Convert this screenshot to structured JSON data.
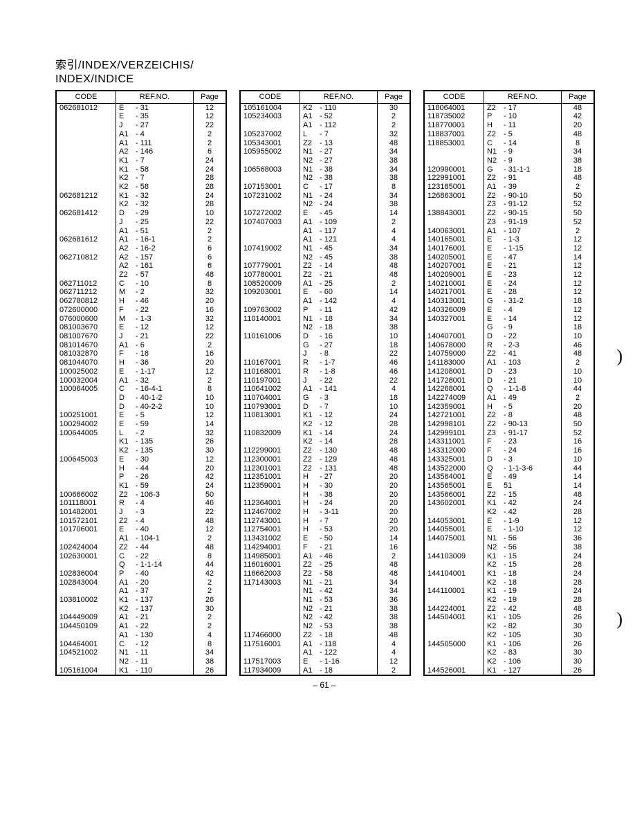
{
  "title_line1": "索引/INDEX/VERZEICHIS/",
  "title_line2": "INDEX/INDICE",
  "page_footer": "– 61 –",
  "paren_char": ")",
  "headers": {
    "c1": "CODE",
    "c2": "REF.NO.",
    "c3": "Page"
  },
  "borderColor": "#000000",
  "bgColor": "#ffffff",
  "textColor": "#000000",
  "tables": [
    {
      "rows": [
        [
          "062681012",
          "E",
          "- 31",
          "12"
        ],
        [
          "",
          "E",
          "- 35",
          "12"
        ],
        [
          "",
          "J",
          "- 27",
          "22"
        ],
        [
          "",
          "A1",
          "- 4",
          "2"
        ],
        [
          "",
          "A1",
          "- 111",
          "2"
        ],
        [
          "",
          "A2",
          "- 146",
          "6"
        ],
        [
          "",
          "K1",
          "- 7",
          "24"
        ],
        [
          "",
          "K1",
          "- 58",
          "24"
        ],
        [
          "",
          "K2",
          "- 7",
          "28"
        ],
        [
          "",
          "K2",
          "- 58",
          "28"
        ],
        [
          "062681212",
          "K1",
          "- 32",
          "24"
        ],
        [
          "",
          "K2",
          "- 32",
          "28"
        ],
        [
          "062681412",
          "D",
          "- 29",
          "10"
        ],
        [
          "",
          "J",
          "- 25",
          "22"
        ],
        [
          "",
          "A1",
          "- 51",
          "2"
        ],
        [
          "062681612",
          "A1",
          "- 16-1",
          "2"
        ],
        [
          "",
          "A2",
          "- 16-2",
          "6"
        ],
        [
          "062710812",
          "A2",
          "- 157",
          "6"
        ],
        [
          "",
          "A2",
          "- 161",
          "6"
        ],
        [
          "",
          "Z2",
          "- 57",
          "48"
        ],
        [
          "062711012",
          "C",
          "- 10",
          "8"
        ],
        [
          "062711212",
          "M",
          "- 2",
          "32"
        ],
        [
          "062780812",
          "H",
          "- 46",
          "20"
        ],
        [
          "072600000",
          "F",
          "- 22",
          "16"
        ],
        [
          "076000600",
          "M",
          "- 1-3",
          "32"
        ],
        [
          "081003670",
          "E",
          "- 12",
          "12"
        ],
        [
          "081007670",
          "J",
          "- 21",
          "22"
        ],
        [
          "081014670",
          "A1",
          "- 6",
          "2"
        ],
        [
          "081032870",
          "F",
          "- 18",
          "16"
        ],
        [
          "081044070",
          "H",
          "- 36",
          "20"
        ],
        [
          "100025002",
          "E",
          "- 1-17",
          "12"
        ],
        [
          "100032004",
          "A1",
          "- 32",
          "2"
        ],
        [
          "100064005",
          "C",
          "- 16-4-1",
          "8"
        ],
        [
          "",
          "D",
          "- 40-1-2",
          "10"
        ],
        [
          "",
          "D",
          "- 40-2-2",
          "10"
        ],
        [
          "100251001",
          "E",
          "- 5",
          "12"
        ],
        [
          "100294002",
          "E",
          "- 59",
          "14"
        ],
        [
          "100644005",
          "L",
          "- 2",
          "32"
        ],
        [
          "",
          "K1",
          "- 135",
          "26"
        ],
        [
          "",
          "K2",
          "- 135",
          "30"
        ],
        [
          "100645003",
          "E",
          "- 30",
          "12"
        ],
        [
          "",
          "H",
          "- 44",
          "20"
        ],
        [
          "",
          "P",
          "- 26",
          "42"
        ],
        [
          "",
          "K1",
          "- 59",
          "24"
        ],
        [
          "100666002",
          "Z2",
          "- 106-3",
          "50"
        ],
        [
          "101118001",
          "R",
          "- 4",
          "46"
        ],
        [
          "101482001",
          "J",
          "- 3",
          "22"
        ],
        [
          "101572101",
          "Z2",
          "- 4",
          "48"
        ],
        [
          "101706001",
          "E",
          "- 40",
          "12"
        ],
        [
          "",
          "A1",
          "- 104-1",
          "2"
        ],
        [
          "102424004",
          "Z2",
          "- 44",
          "48"
        ],
        [
          "102630001",
          "C",
          "- 22",
          "8"
        ],
        [
          "",
          "Q",
          "- 1-1-14",
          "44"
        ],
        [
          "102836004",
          "P",
          "- 40",
          "42"
        ],
        [
          "102843004",
          "A1",
          "- 20",
          "2"
        ],
        [
          "",
          "A1",
          "- 37",
          "2"
        ],
        [
          "103810002",
          "K1",
          "- 137",
          "26"
        ],
        [
          "",
          "K2",
          "- 137",
          "30"
        ],
        [
          "104449009",
          "A1",
          "- 21",
          "2"
        ],
        [
          "104450109",
          "A1",
          "- 22",
          "2"
        ],
        [
          "",
          "A1",
          "- 130",
          "4"
        ],
        [
          "104464001",
          "C",
          "- 12",
          "8"
        ],
        [
          "104521002",
          "N1",
          "- 11",
          "34"
        ],
        [
          "",
          "N2",
          "- 11",
          "38"
        ],
        [
          "105161004",
          "K1",
          "- 110",
          "26"
        ]
      ]
    },
    {
      "rows": [
        [
          "105161004",
          "K2",
          "- 110",
          "30"
        ],
        [
          "105234003",
          "A1",
          "- 52",
          "2"
        ],
        [
          "",
          "A1",
          "- 112",
          "2"
        ],
        [
          "105237002",
          "L",
          "- 7",
          "32"
        ],
        [
          "105343001",
          "Z2",
          "- 13",
          "48"
        ],
        [
          "105955002",
          "N1",
          "- 27",
          "34"
        ],
        [
          "",
          "N2",
          "- 27",
          "38"
        ],
        [
          "106568003",
          "N1",
          "- 38",
          "34"
        ],
        [
          "",
          "N2",
          "- 38",
          "38"
        ],
        [
          "107153001",
          "C",
          "- 17",
          "8"
        ],
        [
          "107231002",
          "N1",
          "- 24",
          "34"
        ],
        [
          "",
          "N2",
          "- 24",
          "38"
        ],
        [
          "107272002",
          "E",
          "- 45",
          "14"
        ],
        [
          "107407003",
          "A1",
          "- 109",
          "2"
        ],
        [
          "",
          "A1",
          "- 117",
          "4"
        ],
        [
          "",
          "A1",
          "- 121",
          "4"
        ],
        [
          "107419002",
          "N1",
          "- 45",
          "34"
        ],
        [
          "",
          "N2",
          "- 45",
          "38"
        ],
        [
          "107779001",
          "Z2",
          "- 14",
          "48"
        ],
        [
          "107780001",
          "Z2",
          "- 21",
          "48"
        ],
        [
          "108520009",
          "A1",
          "- 25",
          "2"
        ],
        [
          "109203001",
          "E",
          "- 60",
          "14"
        ],
        [
          "",
          "A1",
          "- 142",
          "4"
        ],
        [
          "109763002",
          "P",
          "- 11",
          "42"
        ],
        [
          "110140001",
          "N1",
          "- 18",
          "34"
        ],
        [
          "",
          "N2",
          "- 18",
          "38"
        ],
        [
          "110161006",
          "D",
          "- 16",
          "10"
        ],
        [
          "",
          "G",
          "- 27",
          "18"
        ],
        [
          "",
          "J",
          "- 8",
          "22"
        ],
        [
          "110167001",
          "R",
          "- 1-7",
          "46"
        ],
        [
          "110168001",
          "R",
          "- 1-8",
          "46"
        ],
        [
          "110197001",
          "J",
          "- 22",
          "22"
        ],
        [
          "110641002",
          "A1",
          "- 141",
          "4"
        ],
        [
          "110704001",
          "G",
          "- 3",
          "18"
        ],
        [
          "110793001",
          "D",
          "- 7",
          "10"
        ],
        [
          "110813001",
          "K1",
          "- 12",
          "24"
        ],
        [
          "",
          "K2",
          "- 12",
          "28"
        ],
        [
          "110832009",
          "K1",
          "- 14",
          "24"
        ],
        [
          "",
          "K2",
          "- 14",
          "28"
        ],
        [
          "112299001",
          "Z2",
          "- 130",
          "48"
        ],
        [
          "112300001",
          "Z2",
          "- 129",
          "48"
        ],
        [
          "112301001",
          "Z2",
          "- 131",
          "48"
        ],
        [
          "112351001",
          "H",
          "- 27",
          "20"
        ],
        [
          "112359001",
          "H",
          "- 30",
          "20"
        ],
        [
          "",
          "H",
          "- 38",
          "20"
        ],
        [
          "112364001",
          "H",
          "- 24",
          "20"
        ],
        [
          "112467002",
          "H",
          "- 3-11",
          "20"
        ],
        [
          "112743001",
          "H",
          "- 7",
          "20"
        ],
        [
          "112754001",
          "H",
          "- 53",
          "20"
        ],
        [
          "113431002",
          "E",
          "- 50",
          "14"
        ],
        [
          "114294001",
          "F",
          "- 21",
          "16"
        ],
        [
          "114985001",
          "A1",
          "- 46",
          "2"
        ],
        [
          "116016001",
          "Z2",
          "- 25",
          "48"
        ],
        [
          "116662003",
          "Z2",
          "- 58",
          "48"
        ],
        [
          "117143003",
          "N1",
          "- 21",
          "34"
        ],
        [
          "",
          "N1",
          "- 42",
          "34"
        ],
        [
          "",
          "N1",
          "- 53",
          "36"
        ],
        [
          "",
          "N2",
          "- 21",
          "38"
        ],
        [
          "",
          "N2",
          "- 42",
          "38"
        ],
        [
          "",
          "N2",
          "- 53",
          "38"
        ],
        [
          "117466000",
          "Z2",
          "- 18",
          "48"
        ],
        [
          "117516001",
          "A1",
          "- 118",
          "4"
        ],
        [
          "",
          "A1",
          "- 122",
          "4"
        ],
        [
          "117517003",
          "E",
          "- 1-16",
          "12"
        ],
        [
          "117934009",
          "A1",
          "- 18",
          "2"
        ]
      ]
    },
    {
      "rows": [
        [
          "118064001",
          "Z2",
          "- 17",
          "48"
        ],
        [
          "118735002",
          "P",
          "- 10",
          "42"
        ],
        [
          "118770001",
          "H",
          "- 11",
          "20"
        ],
        [
          "118837001",
          "Z2",
          "- 5",
          "48"
        ],
        [
          "118853001",
          "C",
          "- 14",
          "8"
        ],
        [
          "",
          "N1",
          "- 9",
          "34"
        ],
        [
          "",
          "N2",
          "- 9",
          "38"
        ],
        [
          "120990001",
          "G",
          "- 31-1-1",
          "18"
        ],
        [
          "122991001",
          "Z2",
          "- 91",
          "48"
        ],
        [
          "123185001",
          "A1",
          "- 39",
          "2"
        ],
        [
          "126863001",
          "Z2",
          "- 90-10",
          "50"
        ],
        [
          "",
          "Z3",
          "- 91-12",
          "52"
        ],
        [
          "138843001",
          "Z2",
          "- 90-15",
          "50"
        ],
        [
          "",
          "Z3",
          "- 91-19",
          "52"
        ],
        [
          "140063001",
          "A1",
          "- 107",
          "2"
        ],
        [
          "140165001",
          "E",
          "- 1-3",
          "12"
        ],
        [
          "140176001",
          "E",
          "- 1-15",
          "12"
        ],
        [
          "140205001",
          "E",
          "- 47",
          "14"
        ],
        [
          "140207001",
          "E",
          "- 21",
          "12"
        ],
        [
          "140209001",
          "E",
          "- 23",
          "12"
        ],
        [
          "140210001",
          "E",
          "- 24",
          "12"
        ],
        [
          "140217001",
          "E",
          "- 28",
          "12"
        ],
        [
          "140313001",
          "G",
          "- 31-2",
          "18"
        ],
        [
          "140326009",
          "E",
          "- 4",
          "12"
        ],
        [
          "140327001",
          "E",
          "- 14",
          "12"
        ],
        [
          "",
          "G",
          "- 9",
          "18"
        ],
        [
          "140407001",
          "D",
          "- 22",
          "10"
        ],
        [
          "140678000",
          "R",
          "- 2-3",
          "46"
        ],
        [
          "140759000",
          "Z2",
          "- 41",
          "48"
        ],
        [
          "141183000",
          "A1",
          "- 103",
          "2"
        ],
        [
          "141208001",
          "D",
          "- 23",
          "10"
        ],
        [
          "141728001",
          "D",
          "- 21",
          "10"
        ],
        [
          "142268001",
          "Q",
          "- 1-1-8",
          "44"
        ],
        [
          "142274009",
          "A1",
          "- 49",
          "2"
        ],
        [
          "142359001",
          "H",
          "- 5",
          "20"
        ],
        [
          "142721001",
          "Z2",
          "- 8",
          "48"
        ],
        [
          "142998101",
          "Z2",
          "- 90-13",
          "50"
        ],
        [
          "142999101",
          "Z3",
          "- 91-17",
          "52"
        ],
        [
          "143311001",
          "F",
          "- 23",
          "16"
        ],
        [
          "143312000",
          "F",
          "- 24",
          "16"
        ],
        [
          "143325001",
          "D",
          "- 3",
          "10"
        ],
        [
          "143522000",
          "Q",
          "- 1-1-3-6",
          "44"
        ],
        [
          "143564001",
          "E",
          "- 49",
          "14"
        ],
        [
          "143565001",
          "E",
          "  51",
          "14"
        ],
        [
          "143566001",
          "Z2",
          "- 15",
          "48"
        ],
        [
          "143602001",
          "K1",
          "- 42",
          "24"
        ],
        [
          "",
          "K2",
          "- 42",
          "28"
        ],
        [
          "144053001",
          "E",
          "- 1-9",
          "12"
        ],
        [
          "144055001",
          "E",
          "- 1-10",
          "12"
        ],
        [
          "144075001",
          "N1",
          "- 56",
          "36"
        ],
        [
          "",
          "N2",
          "- 56",
          "38"
        ],
        [
          "144103009",
          "K1",
          "- 15",
          "24"
        ],
        [
          "",
          "K2",
          "- 15",
          "28"
        ],
        [
          "144104001",
          "K1",
          "- 18",
          "24"
        ],
        [
          "",
          "K2",
          "- 18",
          "28"
        ],
        [
          "144110001",
          "K1",
          "- 19",
          "24"
        ],
        [
          "",
          "K2",
          "- 19",
          "28"
        ],
        [
          "144224001",
          "Z2",
          "- 42",
          "48"
        ],
        [
          "144504001",
          "K1",
          "- 105",
          "26"
        ],
        [
          "",
          "K2",
          "- 82",
          "30"
        ],
        [
          "",
          "K2",
          "- 105",
          "30"
        ],
        [
          "144505000",
          "K1",
          "- 106",
          "26"
        ],
        [
          "",
          "K2",
          "- 83",
          "30"
        ],
        [
          "",
          "K2",
          "- 106",
          "30"
        ],
        [
          "144526001",
          "K1",
          "- 127",
          "26"
        ]
      ]
    }
  ]
}
